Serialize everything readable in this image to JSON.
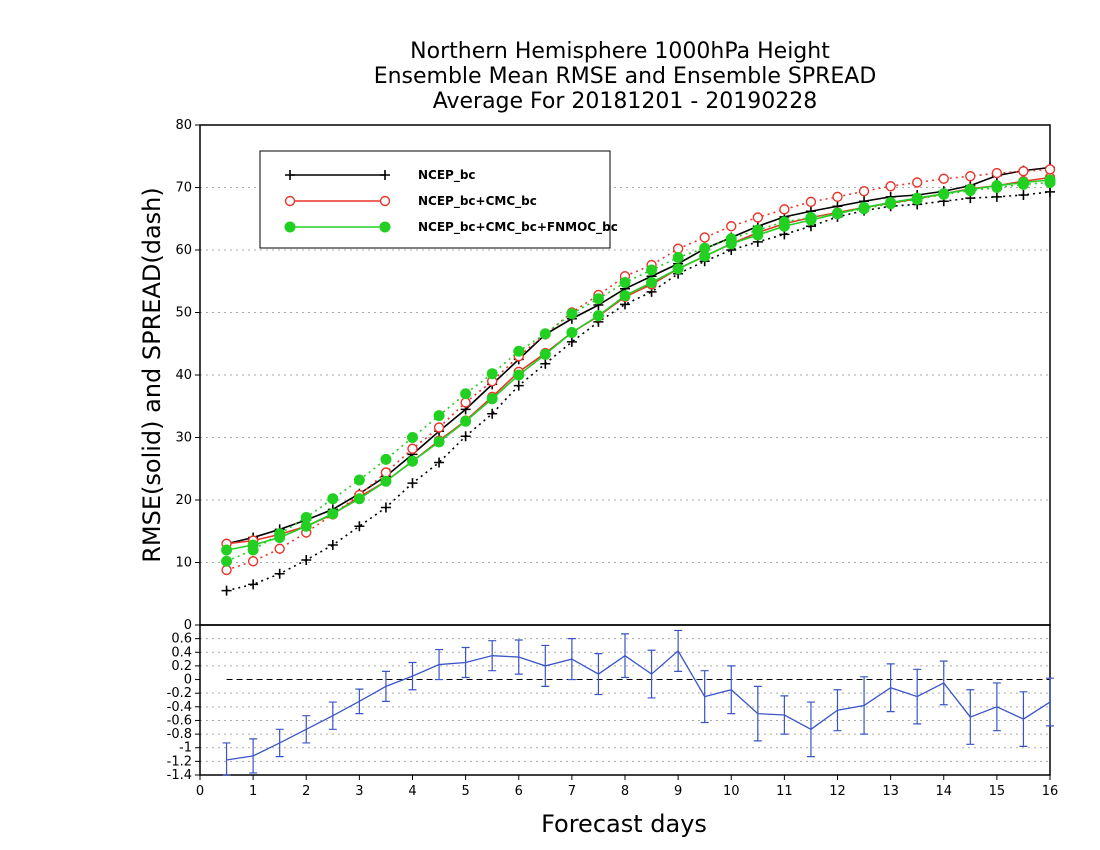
{
  "chart_data": [
    {
      "type": "line",
      "title_lines": [
        "Northern Hemisphere 1000hPa Height",
        "Ensemble Mean RMSE and Ensemble SPREAD",
        "Average For 20181201 - 20190228"
      ],
      "ylabel": "RMSE(solid) and SPREAD(dash)",
      "xlim": [
        0,
        16
      ],
      "ylim": [
        0,
        80
      ],
      "yticks": [
        0,
        10,
        20,
        30,
        40,
        50,
        60,
        70,
        80
      ],
      "grid": true,
      "legend_position": "top-left",
      "x": [
        0.5,
        1,
        1.5,
        2,
        2.5,
        3,
        3.5,
        4,
        4.5,
        5,
        5.5,
        6,
        6.5,
        7,
        7.5,
        8,
        8.5,
        9,
        9.5,
        10,
        10.5,
        11,
        11.5,
        12,
        12.5,
        13,
        13.5,
        14,
        14.5,
        15,
        15.5,
        16
      ],
      "series": [
        {
          "name": "NCEP_bc",
          "color": "#000000",
          "marker": "plus",
          "rmse": [
            13,
            14,
            15.3,
            16.8,
            18.5,
            21,
            23.8,
            27.3,
            31,
            34.5,
            38.5,
            42.5,
            46.5,
            49,
            51.2,
            53.8,
            55.8,
            57.8,
            60.2,
            62,
            63.8,
            65.3,
            66.2,
            67,
            67.8,
            68.5,
            68.8,
            69.4,
            70.3,
            71.9,
            72.7,
            73.2
          ],
          "spread": [
            5.5,
            6.5,
            8.2,
            10.4,
            12.8,
            15.8,
            18.8,
            22.7,
            26,
            30.2,
            33.8,
            38.3,
            41.8,
            45.3,
            48.5,
            51.3,
            53.3,
            56.2,
            58.2,
            60,
            61.3,
            62.5,
            63.8,
            65.3,
            66.3,
            67,
            67.3,
            67.8,
            68.3,
            68.5,
            68.8,
            69.3
          ]
        },
        {
          "name": "NCEP_bc+CMC_bc",
          "color": "#e8352a",
          "marker": "open-circle",
          "rmse": [
            13,
            13.5,
            14.5,
            15.8,
            17.7,
            20.5,
            23,
            26.2,
            29.5,
            32.7,
            36.5,
            40.5,
            43.5,
            46.8,
            49.4,
            52.5,
            54.5,
            57,
            59,
            61,
            62.8,
            64.2,
            65.2,
            66,
            66.8,
            67.5,
            68.2,
            69,
            69.8,
            70.3,
            71,
            71.6
          ],
          "spread": [
            8.8,
            10.2,
            12.2,
            14.8,
            17.7,
            20.8,
            24.4,
            28.2,
            31.6,
            35.6,
            39,
            43,
            46.5,
            50,
            52.8,
            55.8,
            57.6,
            60.2,
            62,
            63.8,
            65.2,
            66.5,
            67.7,
            68.5,
            69.4,
            70.2,
            70.8,
            71.4,
            71.8,
            72.3,
            72.6,
            72.9
          ]
        },
        {
          "name": "NCEP_bc+CMC_bc+FNMOC_bc",
          "color": "#22d022",
          "marker": "filled-circle",
          "rmse": [
            12,
            12.8,
            14,
            15.8,
            17.8,
            20.2,
            23,
            26.2,
            29.3,
            32.6,
            36.2,
            40,
            43.3,
            46.8,
            49.5,
            52.7,
            54.8,
            57,
            59,
            61,
            62.4,
            63.8,
            64.8,
            65.8,
            66.8,
            67.6,
            68.3,
            69,
            69.7,
            70.3,
            70.8,
            71.2
          ],
          "spread": [
            10.2,
            12,
            14.6,
            17.2,
            20.2,
            23.2,
            26.5,
            30,
            33.5,
            37,
            40.2,
            43.8,
            46.6,
            49.8,
            52.2,
            54.8,
            56.8,
            58.8,
            60.3,
            61.8,
            63.2,
            64.5,
            65.2,
            65.9,
            66.6,
            67.4,
            68.1,
            68.9,
            69.5,
            70,
            70.5,
            70.8
          ]
        }
      ]
    },
    {
      "type": "line",
      "xlabel": "Forecast days",
      "xlim": [
        0,
        16
      ],
      "xticks": [
        0,
        1,
        2,
        3,
        4,
        5,
        6,
        7,
        8,
        9,
        10,
        11,
        12,
        13,
        14,
        15,
        16
      ],
      "ylim": [
        -1.4,
        0.8
      ],
      "yticks": [
        -1.4,
        -1.2,
        -1,
        -0.8,
        -0.6,
        -0.4,
        -0.2,
        0,
        0.2,
        0.4,
        0.6
      ],
      "ytick_labels": [
        "-1.4",
        "-1.2",
        "-1",
        "-0.8",
        "-0.6",
        "-0.4",
        "-0.2",
        "0",
        "0.2",
        "0.4",
        "0.6"
      ],
      "grid": true,
      "zero_line": true,
      "color": "#3a55c8",
      "x": [
        0.5,
        1,
        1.5,
        2,
        2.5,
        3,
        3.5,
        4,
        4.5,
        5,
        5.5,
        6,
        6.5,
        7,
        7.5,
        8,
        8.5,
        9,
        9.5,
        10,
        10.5,
        11,
        11.5,
        12,
        12.5,
        13,
        13.5,
        14,
        14.5,
        15,
        15.5,
        16
      ],
      "values": [
        -1.18,
        -1.12,
        -0.93,
        -0.73,
        -0.53,
        -0.32,
        -0.1,
        0.05,
        0.22,
        0.25,
        0.35,
        0.33,
        0.2,
        0.3,
        0.08,
        0.35,
        0.08,
        0.42,
        -0.25,
        -0.15,
        -0.5,
        -0.52,
        -0.73,
        -0.45,
        -0.38,
        -0.12,
        -0.25,
        -0.05,
        -0.55,
        -0.4,
        -0.58,
        -0.33
      ],
      "errors": [
        0.25,
        0.25,
        0.2,
        0.2,
        0.2,
        0.18,
        0.22,
        0.2,
        0.22,
        0.22,
        0.22,
        0.25,
        0.3,
        0.3,
        0.3,
        0.32,
        0.35,
        0.3,
        0.38,
        0.35,
        0.4,
        0.28,
        0.4,
        0.3,
        0.42,
        0.35,
        0.4,
        0.32,
        0.4,
        0.35,
        0.4,
        0.35
      ]
    }
  ]
}
